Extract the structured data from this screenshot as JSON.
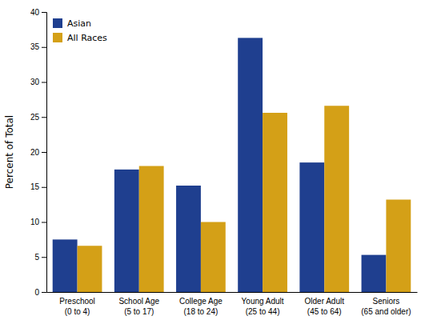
{
  "chart_data": {
    "type": "bar",
    "categories": [
      "Preschool\n(0 to 4)",
      "School Age\n(5 to 17)",
      "College Age\n(18 to 24)",
      "Young Adult\n(25 to 44)",
      "Older Adult\n(45 to 64)",
      "Seniors\n(65 and older)"
    ],
    "series": [
      {
        "name": "Asian",
        "color": "#1F3F8F",
        "values": [
          7.5,
          17.5,
          15.2,
          36.3,
          18.5,
          5.3
        ]
      },
      {
        "name": "All Races",
        "color": "#D4A017",
        "values": [
          6.6,
          18.0,
          10.0,
          25.6,
          26.6,
          13.2
        ]
      }
    ],
    "ylabel": "Percent of Total",
    "ylim": [
      0,
      40
    ],
    "yticks": [
      0,
      5,
      10,
      15,
      20,
      25,
      30,
      35,
      40
    ],
    "legend": "upper left"
  }
}
